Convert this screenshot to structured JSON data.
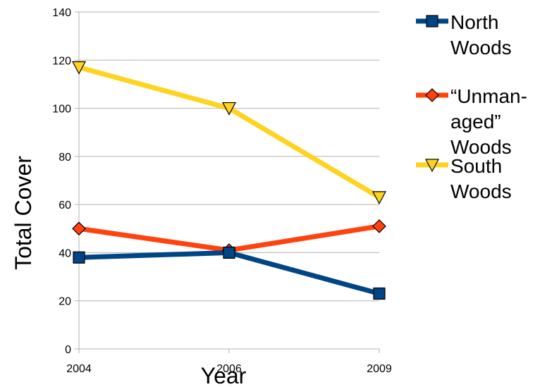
{
  "chart_data": {
    "type": "line",
    "title": "",
    "xlabel": "Year",
    "ylabel": "Total Cover",
    "categories": [
      "2004",
      "2006",
      "2009"
    ],
    "ylim": [
      0,
      140
    ],
    "yticks": [
      "0",
      "20",
      "40",
      "60",
      "80",
      "100",
      "120",
      "140"
    ],
    "grid": "horizontal",
    "legend": "right",
    "series": [
      {
        "name": "North Woods",
        "legend_lines": [
          "North",
          "Woods"
        ],
        "values": [
          38,
          40,
          23
        ],
        "color": "#004586",
        "marker": "square"
      },
      {
        "name": "“Unmanaged” Woods",
        "legend_lines": [
          "“Unman-",
          "aged”",
          "Woods"
        ],
        "values": [
          50,
          41,
          51
        ],
        "color": "#ff420e",
        "marker": "diamond"
      },
      {
        "name": "South Woods",
        "legend_lines": [
          "South",
          "Woods"
        ],
        "values": [
          117,
          100,
          63
        ],
        "color": "#ffd320",
        "marker": "triangle-down"
      }
    ]
  }
}
